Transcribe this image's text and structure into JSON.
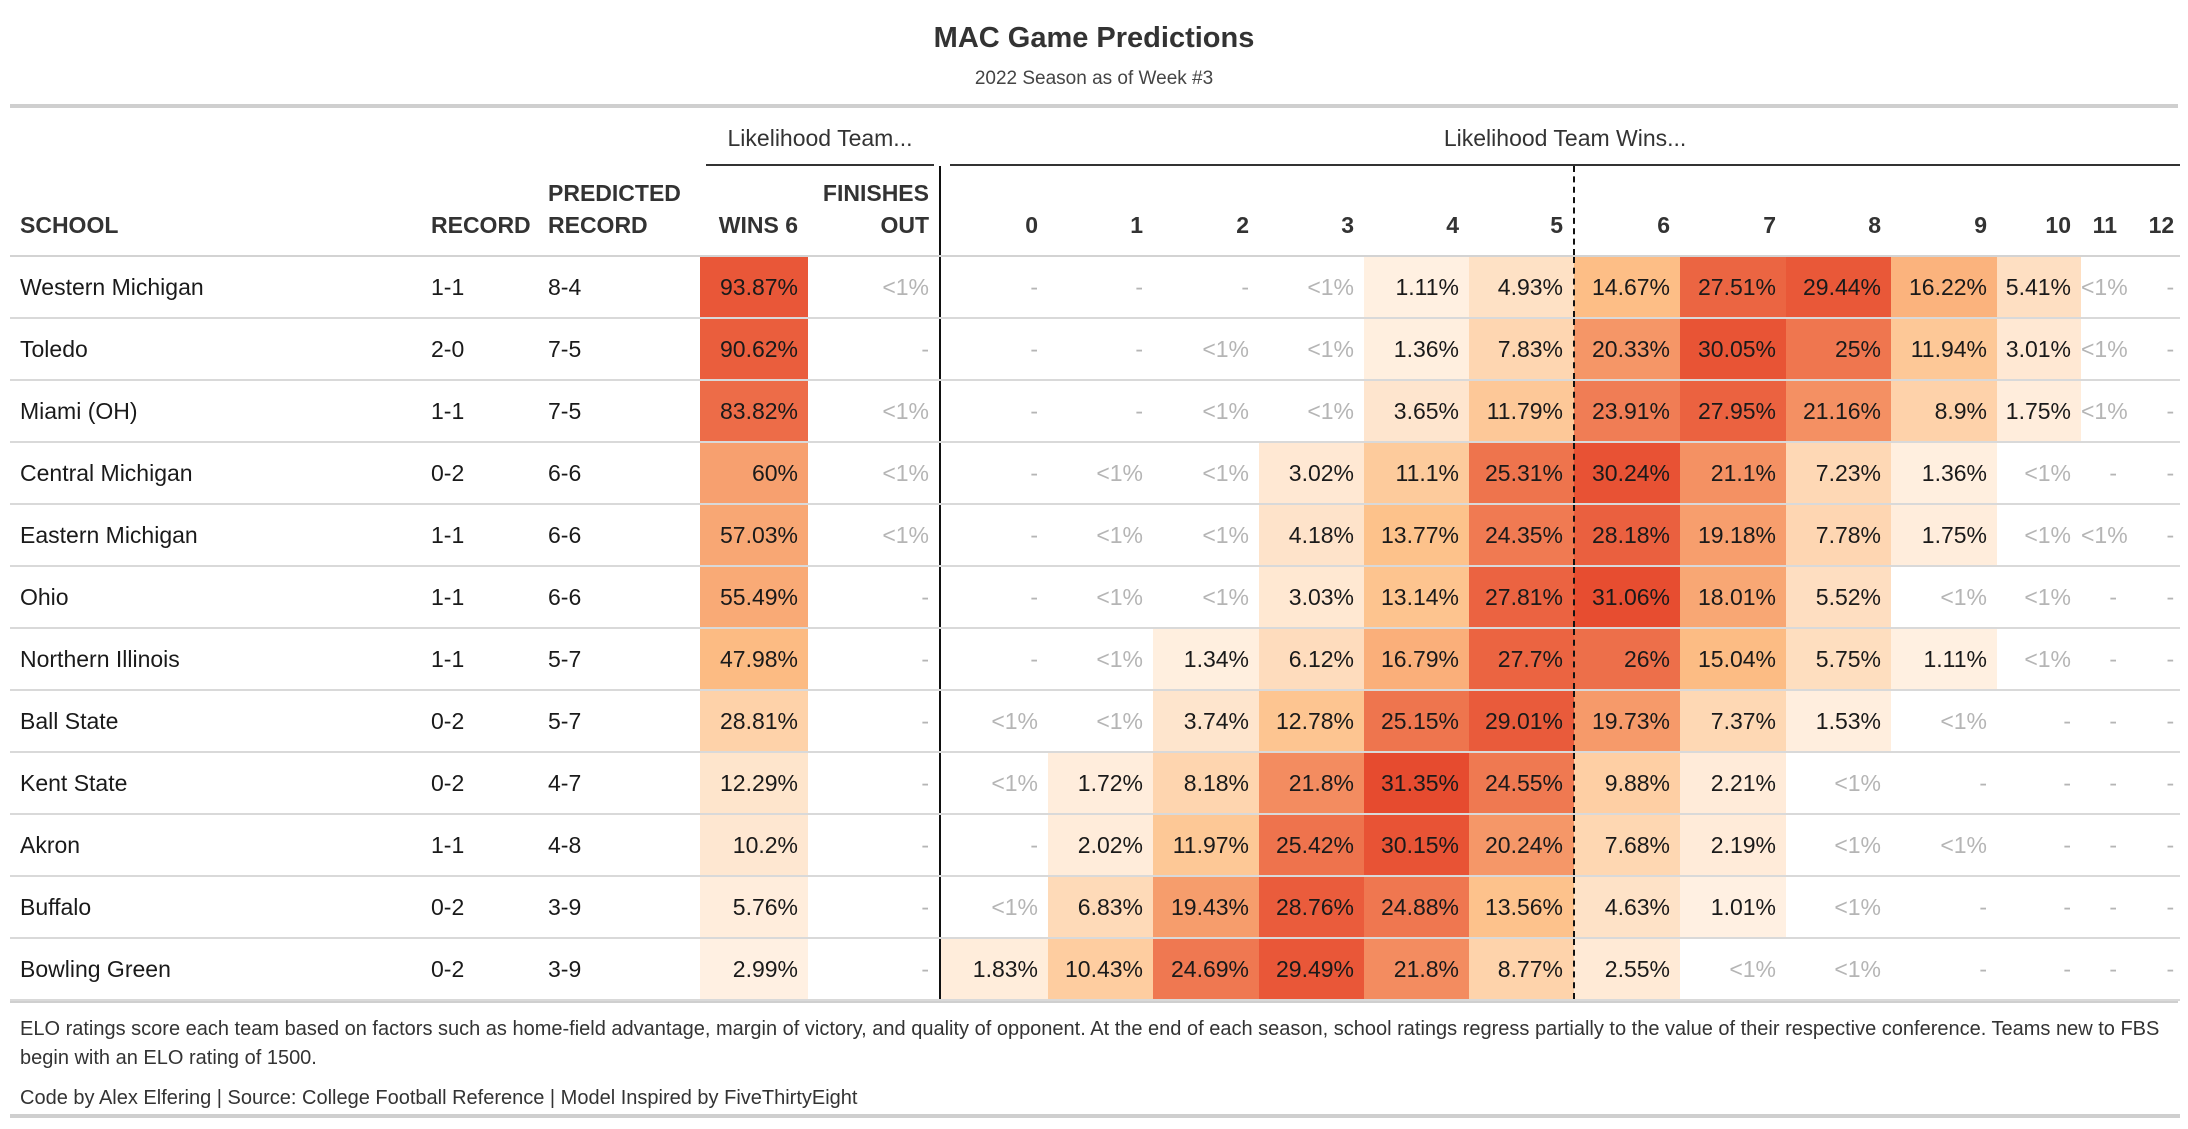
{
  "header": {
    "title": "MAC Game Predictions",
    "subtitle": "2022 Season as of Week #3"
  },
  "table": {
    "spanner_likelihood_team": "Likelihood Team...",
    "spanner_likelihood_wins": "Likelihood Team Wins...",
    "columns": {
      "school": "SCHOOL",
      "record": "RECORD",
      "predicted_record_1": "PREDICTED",
      "predicted_record_2": "RECORD",
      "wins6": "WINS 6",
      "finishes_out_1": "FINISHES",
      "finishes_out_2": "OUT",
      "wins": [
        "0",
        "1",
        "2",
        "3",
        "4",
        "5",
        "6",
        "7",
        "8",
        "9",
        "10",
        "11",
        "12"
      ]
    }
  },
  "chart_data": {
    "type": "table",
    "rows": [
      {
        "school": "Western Michigan",
        "record": "1-1",
        "predicted": "8-4",
        "wins6": "93.87%",
        "out": "<1%",
        "wins": [
          "-",
          "-",
          "-",
          "<1%",
          "1.11%",
          "4.93%",
          "14.67%",
          "27.51%",
          "29.44%",
          "16.22%",
          "5.41%",
          "<1%",
          "-"
        ]
      },
      {
        "school": "Toledo",
        "record": "2-0",
        "predicted": "7-5",
        "wins6": "90.62%",
        "out": "-",
        "wins": [
          "-",
          "-",
          "<1%",
          "<1%",
          "1.36%",
          "7.83%",
          "20.33%",
          "30.05%",
          "25%",
          "11.94%",
          "3.01%",
          "<1%",
          "-"
        ]
      },
      {
        "school": "Miami (OH)",
        "record": "1-1",
        "predicted": "7-5",
        "wins6": "83.82%",
        "out": "<1%",
        "wins": [
          "-",
          "-",
          "<1%",
          "<1%",
          "3.65%",
          "11.79%",
          "23.91%",
          "27.95%",
          "21.16%",
          "8.9%",
          "1.75%",
          "<1%",
          "-"
        ]
      },
      {
        "school": "Central Michigan",
        "record": "0-2",
        "predicted": "6-6",
        "wins6": "60%",
        "out": "<1%",
        "wins": [
          "-",
          "<1%",
          "<1%",
          "3.02%",
          "11.1%",
          "25.31%",
          "30.24%",
          "21.1%",
          "7.23%",
          "1.36%",
          "<1%",
          "-",
          "-"
        ]
      },
      {
        "school": "Eastern Michigan",
        "record": "1-1",
        "predicted": "6-6",
        "wins6": "57.03%",
        "out": "<1%",
        "wins": [
          "-",
          "<1%",
          "<1%",
          "4.18%",
          "13.77%",
          "24.35%",
          "28.18%",
          "19.18%",
          "7.78%",
          "1.75%",
          "<1%",
          "<1%",
          "-"
        ]
      },
      {
        "school": "Ohio",
        "record": "1-1",
        "predicted": "6-6",
        "wins6": "55.49%",
        "out": "-",
        "wins": [
          "-",
          "<1%",
          "<1%",
          "3.03%",
          "13.14%",
          "27.81%",
          "31.06%",
          "18.01%",
          "5.52%",
          "<1%",
          "<1%",
          "-",
          "-"
        ]
      },
      {
        "school": "Northern Illinois",
        "record": "1-1",
        "predicted": "5-7",
        "wins6": "47.98%",
        "out": "-",
        "wins": [
          "-",
          "<1%",
          "1.34%",
          "6.12%",
          "16.79%",
          "27.7%",
          "26%",
          "15.04%",
          "5.75%",
          "1.11%",
          "<1%",
          "-",
          "-"
        ]
      },
      {
        "school": "Ball State",
        "record": "0-2",
        "predicted": "5-7",
        "wins6": "28.81%",
        "out": "-",
        "wins": [
          "<1%",
          "<1%",
          "3.74%",
          "12.78%",
          "25.15%",
          "29.01%",
          "19.73%",
          "7.37%",
          "1.53%",
          "<1%",
          "-",
          "-",
          "-"
        ]
      },
      {
        "school": "Kent State",
        "record": "0-2",
        "predicted": "4-7",
        "wins6": "12.29%",
        "out": "-",
        "wins": [
          "<1%",
          "1.72%",
          "8.18%",
          "21.8%",
          "31.35%",
          "24.55%",
          "9.88%",
          "2.21%",
          "<1%",
          "-",
          "-",
          "-",
          "-"
        ]
      },
      {
        "school": "Akron",
        "record": "1-1",
        "predicted": "4-8",
        "wins6": "10.2%",
        "out": "-",
        "wins": [
          "-",
          "2.02%",
          "11.97%",
          "25.42%",
          "30.15%",
          "20.24%",
          "7.68%",
          "2.19%",
          "<1%",
          "<1%",
          "-",
          "-",
          "-"
        ]
      },
      {
        "school": "Buffalo",
        "record": "0-2",
        "predicted": "3-9",
        "wins6": "5.76%",
        "out": "-",
        "wins": [
          "<1%",
          "6.83%",
          "19.43%",
          "28.76%",
          "24.88%",
          "13.56%",
          "4.63%",
          "1.01%",
          "<1%",
          "-",
          "-",
          "-",
          "-"
        ]
      },
      {
        "school": "Bowling Green",
        "record": "0-2",
        "predicted": "3-9",
        "wins6": "2.99%",
        "out": "-",
        "wins": [
          "1.83%",
          "10.43%",
          "24.69%",
          "29.49%",
          "21.8%",
          "8.77%",
          "2.55%",
          "<1%",
          "<1%",
          "-",
          "-",
          "-",
          "-"
        ]
      }
    ]
  },
  "colors": {
    "scale_low": "#fff5eb",
    "scale_mid": "#fdbf86",
    "scale_high": "#e64a2e",
    "muted_text": "#b5b5b5"
  },
  "footer": {
    "note": "ELO ratings score each team based on factors such as home-field advantage, margin of victory, and quality of opponent. At the end of each season, school ratings regress partially to the value of their respective conference. Teams new to FBS begin with an ELO rating of 1500.",
    "source": "Code by Alex Elfering | Source: College Football Reference | Model Inspired by FiveThirtyEight"
  }
}
